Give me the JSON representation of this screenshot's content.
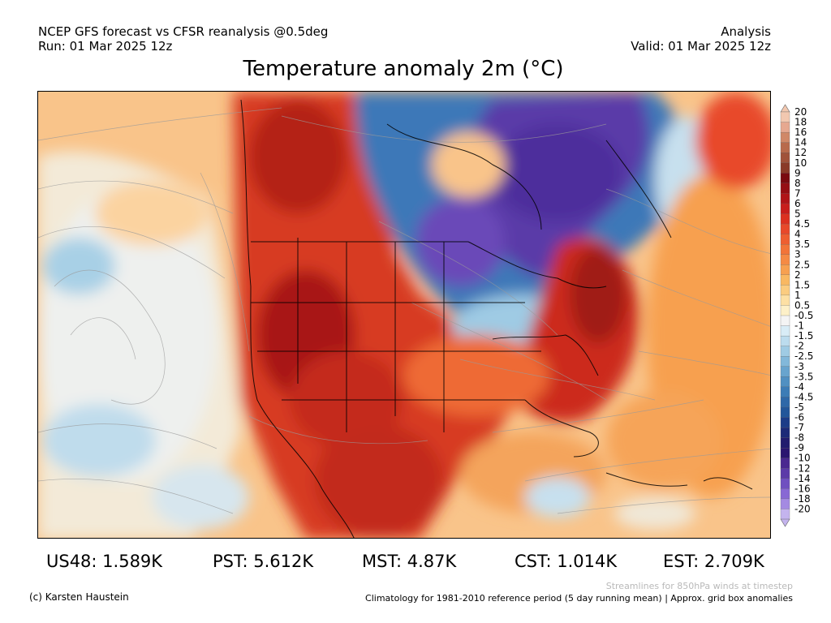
{
  "header": {
    "line1_left": "NCEP GFS forecast vs CFSR reanalysis @0.5deg",
    "line2_left": "Run: 01 Mar 2025 12z",
    "line1_right": "Analysis",
    "line2_right": "Valid: 01 Mar 2025 12z"
  },
  "title": "Temperature anomaly 2m (°C)",
  "colorbar": {
    "labels": [
      "20",
      "18",
      "16",
      "14",
      "12",
      "10",
      "9",
      "8",
      "7",
      "6",
      "5",
      "4.5",
      "4",
      "3.5",
      "3",
      "2.5",
      "2",
      "1.5",
      "1",
      "0.5",
      "-0.5",
      "-1",
      "-1.5",
      "-2",
      "-2.5",
      "-3",
      "-3.5",
      "-4",
      "-4.5",
      "-5",
      "-6",
      "-7",
      "-8",
      "-9",
      "-10",
      "-12",
      "-14",
      "-16",
      "-18",
      "-20"
    ],
    "colors": [
      "#f2c8b0",
      "#e6a890",
      "#d08868",
      "#b86a4c",
      "#a0523a",
      "#8a3a28",
      "#7a0a10",
      "#950e14",
      "#b01418",
      "#c81e1c",
      "#dc3020",
      "#e8482a",
      "#ee5e30",
      "#f27438",
      "#f58a44",
      "#f7a050",
      "#f9b862",
      "#fbcc80",
      "#fde0a4",
      "#fdf0c8",
      "#f4f4f4",
      "#d8ecf6",
      "#bcdcee",
      "#9fcbe4",
      "#82b8da",
      "#68a4ce",
      "#5090c2",
      "#3c7cb6",
      "#2e68a8",
      "#22569a",
      "#1c3c88",
      "#1c2a78",
      "#221c6e",
      "#2a1670",
      "#4a2890",
      "#5c3aa8",
      "#7050c0",
      "#8868d4",
      "#a48ae2",
      "#c4b4ee"
    ]
  },
  "stats": {
    "us48": "US48: 1.589K",
    "pst": "PST: 5.612K",
    "mst": "MST: 4.87K",
    "cst": "CST: 1.014K",
    "est": "EST: 2.709K"
  },
  "footer": {
    "streamlines": "Streamlines for 850hPa winds at timestep",
    "climatology": "Climatology for 1981-2010 reference period (5 day running mean) | Approx. grid box anomalies",
    "copyright": "(c) Karsten Haustein"
  }
}
